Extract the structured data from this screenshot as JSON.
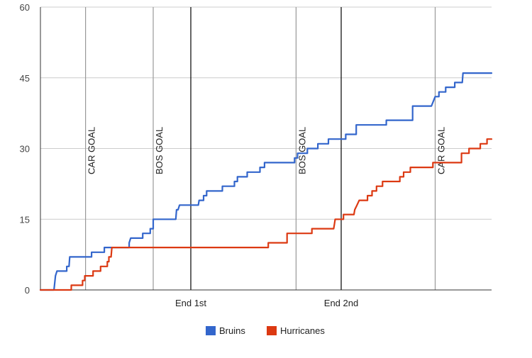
{
  "chart_data": {
    "type": "line",
    "title": "",
    "xlabel": "",
    "ylabel": "",
    "ylim": [
      0,
      60
    ],
    "y_ticks": [
      "0",
      "15",
      "30",
      "45",
      "60"
    ],
    "grid": true,
    "legend_position": "bottom",
    "x_range": [
      0,
      60
    ],
    "period_markers": [
      {
        "label": "End 1st",
        "x": 20
      },
      {
        "label": "End 2nd",
        "x": 40
      }
    ],
    "goal_markers": [
      {
        "label": "CAR GOAL",
        "x": 6
      },
      {
        "label": "BOS GOAL",
        "x": 15
      },
      {
        "label": "BOS GOAL",
        "x": 34
      },
      {
        "label": "CAR GOAL",
        "x": 52.5
      }
    ],
    "series": [
      {
        "name": "Bruins",
        "color": "#3366cc",
        "step_points": [
          [
            0,
            0
          ],
          [
            1.8,
            0
          ],
          [
            2,
            3
          ],
          [
            2.2,
            4
          ],
          [
            3.5,
            4
          ],
          [
            3.5,
            5
          ],
          [
            3.8,
            5
          ],
          [
            3.9,
            7
          ],
          [
            6.8,
            7
          ],
          [
            6.8,
            8
          ],
          [
            8.5,
            8
          ],
          [
            8.5,
            9
          ],
          [
            11.8,
            9
          ],
          [
            11.8,
            10
          ],
          [
            12,
            11
          ],
          [
            13.6,
            11
          ],
          [
            13.6,
            12
          ],
          [
            14.6,
            12
          ],
          [
            14.6,
            13
          ],
          [
            15,
            13
          ],
          [
            15,
            15
          ],
          [
            18,
            15
          ],
          [
            18.1,
            17
          ],
          [
            18.3,
            17
          ],
          [
            18.5,
            18
          ],
          [
            21,
            18
          ],
          [
            21.1,
            19
          ],
          [
            21.7,
            19
          ],
          [
            21.7,
            20
          ],
          [
            22.1,
            20
          ],
          [
            22.1,
            21
          ],
          [
            24.2,
            21
          ],
          [
            24.2,
            22
          ],
          [
            25.8,
            22
          ],
          [
            25.8,
            23
          ],
          [
            26.2,
            23
          ],
          [
            26.2,
            24
          ],
          [
            27.5,
            24
          ],
          [
            27.5,
            25
          ],
          [
            29.2,
            25
          ],
          [
            29.2,
            26
          ],
          [
            29.8,
            26
          ],
          [
            29.8,
            27
          ],
          [
            33.8,
            27
          ],
          [
            33.8,
            28
          ],
          [
            34.2,
            28
          ],
          [
            34.2,
            29
          ],
          [
            35.5,
            29
          ],
          [
            35.5,
            30
          ],
          [
            36.9,
            30
          ],
          [
            36.9,
            31
          ],
          [
            38.3,
            31
          ],
          [
            38.3,
            32
          ],
          [
            40.6,
            32
          ],
          [
            40.6,
            33
          ],
          [
            42,
            33
          ],
          [
            42,
            35
          ],
          [
            46,
            35
          ],
          [
            46,
            36
          ],
          [
            49.5,
            36
          ],
          [
            49.5,
            39
          ],
          [
            52,
            39
          ],
          [
            52.5,
            41
          ],
          [
            53,
            41
          ],
          [
            53,
            42
          ],
          [
            53.9,
            42
          ],
          [
            53.9,
            43
          ],
          [
            55.1,
            43
          ],
          [
            55.1,
            44
          ],
          [
            56.1,
            44
          ],
          [
            56.2,
            46
          ],
          [
            60,
            46
          ]
        ]
      },
      {
        "name": "Hurricanes",
        "color": "#dc3912",
        "step_points": [
          [
            0,
            0
          ],
          [
            4.1,
            0
          ],
          [
            4.1,
            1
          ],
          [
            5.6,
            1
          ],
          [
            5.6,
            2
          ],
          [
            5.9,
            2
          ],
          [
            5.9,
            3
          ],
          [
            7,
            3
          ],
          [
            7,
            4
          ],
          [
            8,
            4
          ],
          [
            8,
            5
          ],
          [
            8.9,
            5
          ],
          [
            8.9,
            6
          ],
          [
            9.1,
            6
          ],
          [
            9.1,
            7
          ],
          [
            9.4,
            7
          ],
          [
            9.5,
            9
          ],
          [
            30.3,
            9
          ],
          [
            30.3,
            10
          ],
          [
            32.8,
            10
          ],
          [
            32.8,
            12
          ],
          [
            36.1,
            12
          ],
          [
            36.1,
            13
          ],
          [
            39,
            13
          ],
          [
            39.1,
            14
          ],
          [
            39.2,
            15
          ],
          [
            40.3,
            15
          ],
          [
            40.3,
            16
          ],
          [
            41.7,
            16
          ],
          [
            41.8,
            17
          ],
          [
            42.1,
            18
          ],
          [
            42.4,
            19
          ],
          [
            43.5,
            19
          ],
          [
            43.5,
            20
          ],
          [
            44.1,
            20
          ],
          [
            44.1,
            21
          ],
          [
            44.7,
            21
          ],
          [
            44.7,
            22
          ],
          [
            45.5,
            22
          ],
          [
            45.5,
            23
          ],
          [
            47.8,
            23
          ],
          [
            47.8,
            24
          ],
          [
            48.3,
            24
          ],
          [
            48.3,
            25
          ],
          [
            49.2,
            25
          ],
          [
            49.2,
            26
          ],
          [
            52.2,
            26
          ],
          [
            52.2,
            27
          ],
          [
            56,
            27
          ],
          [
            56,
            29
          ],
          [
            57,
            29
          ],
          [
            57,
            30
          ],
          [
            58.5,
            30
          ],
          [
            58.5,
            31
          ],
          [
            59.4,
            31
          ],
          [
            59.4,
            32
          ],
          [
            60,
            32
          ]
        ]
      }
    ]
  }
}
